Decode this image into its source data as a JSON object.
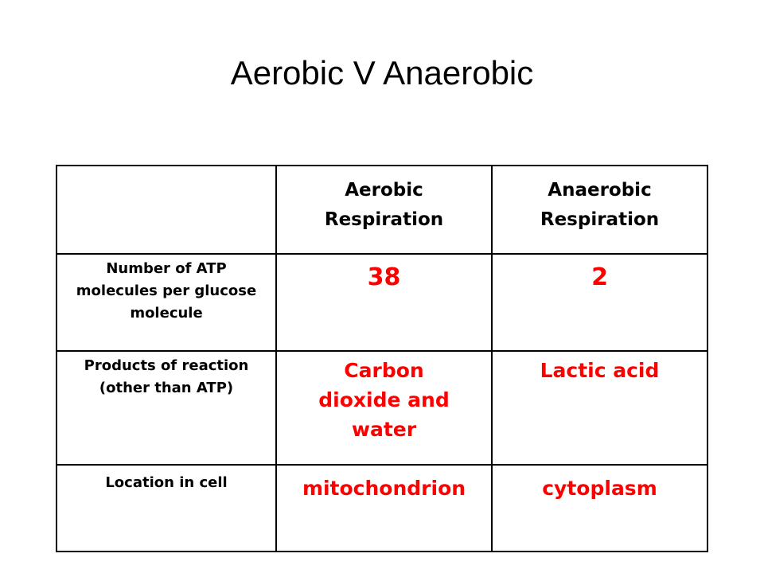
{
  "title": "Aerobic V Anaerobic",
  "table": {
    "columns": [
      "Aerobic Respiration",
      "Anaerobic Respiration"
    ],
    "rows": [
      {
        "label": "Number of ATP molecules per glucose molecule",
        "values": [
          38,
          2
        ]
      },
      {
        "label": "Products of reaction (other than ATP)",
        "values": [
          "Carbon dioxide and water",
          "Lactic acid"
        ]
      },
      {
        "label": "Location in cell",
        "values": [
          "mitochondrion",
          "cytoplasm"
        ]
      }
    ]
  }
}
